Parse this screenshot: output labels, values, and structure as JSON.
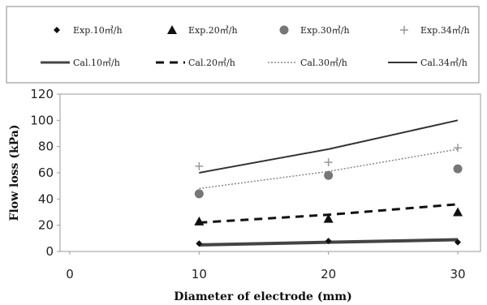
{
  "chart_data": {
    "type": "line",
    "xlabel": "Diameter of electrode (mm)",
    "ylabel": "Flow loss (kPa)",
    "xlim": [
      0,
      30
    ],
    "ylim": [
      0,
      120
    ],
    "x_ticks": [
      "0",
      "10",
      "20",
      "30"
    ],
    "y_ticks": [
      "0",
      "20",
      "40",
      "60",
      "80",
      "100",
      "120"
    ],
    "grid": false,
    "legend_position": "top",
    "experimental": [
      {
        "name": "Exp.10㎥/h",
        "marker": "diamond",
        "x": [
          10,
          20,
          30
        ],
        "y": [
          6,
          8,
          7
        ]
      },
      {
        "name": "Exp.20㎥/h",
        "marker": "triangle",
        "x": [
          10,
          20,
          30
        ],
        "y": [
          23,
          25,
          30
        ]
      },
      {
        "name": "Exp.30㎥/h",
        "marker": "circle",
        "x": [
          10,
          20,
          30
        ],
        "y": [
          44,
          58,
          63
        ]
      },
      {
        "name": "Exp.34㎥/h",
        "marker": "plus",
        "x": [
          10,
          20,
          30
        ],
        "y": [
          65,
          68,
          79
        ]
      }
    ],
    "calculated": [
      {
        "name": "Cal.10㎥/h",
        "style": "solid-thick",
        "x": [
          10,
          20,
          30
        ],
        "y": [
          5,
          7,
          9
        ]
      },
      {
        "name": "Cal.20㎥/h",
        "style": "dashed",
        "x": [
          10,
          20,
          30
        ],
        "y": [
          22,
          28,
          36
        ]
      },
      {
        "name": "Cal.30㎥/h",
        "style": "dotted",
        "x": [
          10,
          20,
          30
        ],
        "y": [
          48,
          61,
          78
        ]
      },
      {
        "name": "Cal.34㎥/h",
        "style": "solid",
        "x": [
          10,
          20,
          30
        ],
        "y": [
          60,
          78,
          100
        ]
      }
    ],
    "colors": {
      "exp_10": "#111111",
      "exp_20": "#111111",
      "exp_30": "#777777",
      "exp_34": "#999999",
      "cal_10": "#444444",
      "cal_20": "#111111",
      "cal_30": "#888888",
      "cal_34": "#333333"
    }
  }
}
